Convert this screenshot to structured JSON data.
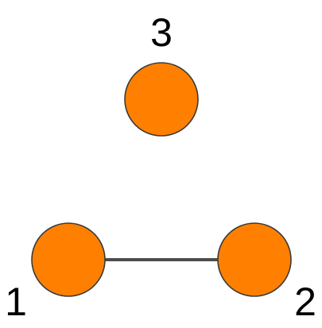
{
  "graph": {
    "node_color": "#ff8000",
    "edge_color": "#4d4d4d",
    "nodes": [
      {
        "id": "1",
        "label": "1"
      },
      {
        "id": "2",
        "label": "2"
      },
      {
        "id": "3",
        "label": "3"
      }
    ],
    "edges": [
      {
        "source": "1",
        "target": "2"
      }
    ]
  }
}
